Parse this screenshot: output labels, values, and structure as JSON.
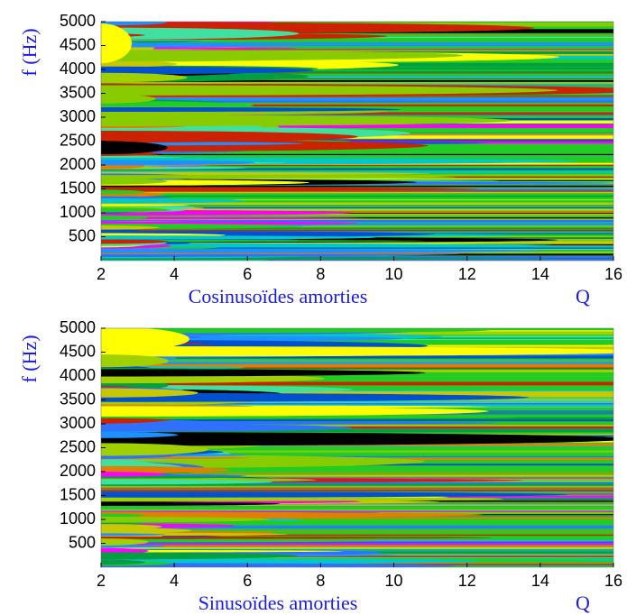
{
  "chart_data": [
    {
      "type": "heatmap",
      "title": "Cosinusoïdes amorties",
      "xlabel": "Q",
      "ylabel": "f (Hz)",
      "xlim": [
        2,
        16
      ],
      "xticks": [
        2,
        4,
        6,
        8,
        10,
        12,
        14,
        16
      ],
      "ylim": [
        0,
        5000
      ],
      "yticks": [
        500,
        1000,
        1500,
        2000,
        2500,
        3000,
        3500,
        4000,
        4500,
        5000
      ]
    },
    {
      "type": "heatmap",
      "title": "Sinusoïdes amorties",
      "xlabel": "Q",
      "ylabel": "f (Hz)",
      "xlim": [
        2,
        16
      ],
      "xticks": [
        2,
        4,
        6,
        8,
        10,
        12,
        14,
        16
      ],
      "ylim": [
        0,
        5000
      ],
      "yticks": [
        500,
        1000,
        1500,
        2000,
        2500,
        3000,
        3500,
        4000,
        4500,
        5000
      ]
    }
  ]
}
